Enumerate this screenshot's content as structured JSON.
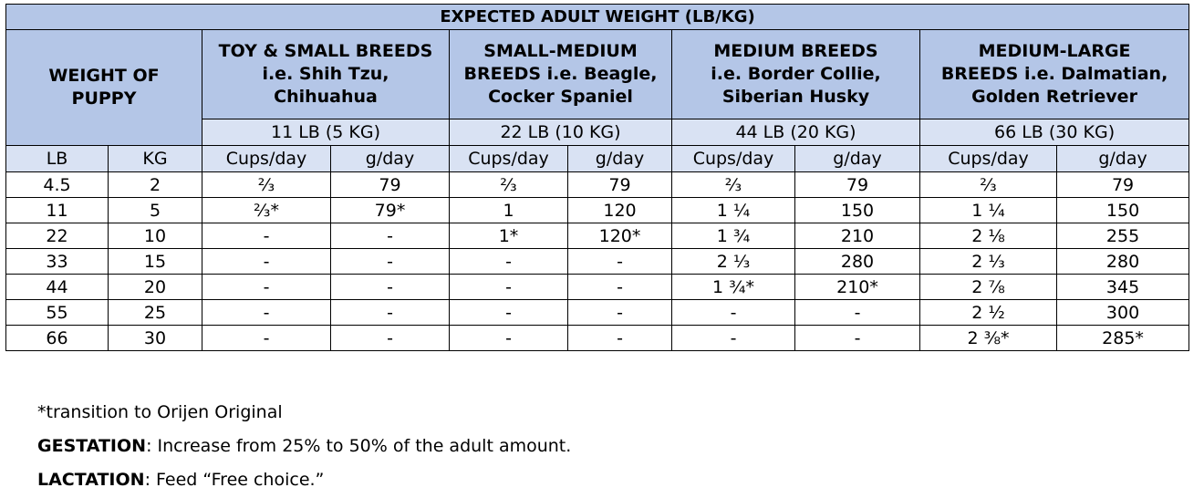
{
  "table": {
    "title": "EXPECTED ADULT WEIGHT (LB/KG)",
    "puppy_header": [
      "WEIGHT OF",
      "PUPPY"
    ],
    "breeds": [
      {
        "lines": [
          "TOY & SMALL BREEDS",
          "i.e. Shih Tzu,",
          "Chihuahua"
        ],
        "adult_weight": "11 LB (5 KG)"
      },
      {
        "lines": [
          "SMALL-MEDIUM",
          "BREEDS i.e. Beagle,",
          "Cocker Spaniel"
        ],
        "adult_weight": "22 LB (10 KG)"
      },
      {
        "lines": [
          "MEDIUM BREEDS",
          "i.e. Border Collie,",
          "Siberian Husky"
        ],
        "adult_weight": "44 LB (20 KG)"
      },
      {
        "lines": [
          "MEDIUM-LARGE",
          "BREEDS i.e. Dalmatian,",
          "Golden Retriever"
        ],
        "adult_weight": "66 LB (30 KG)"
      }
    ],
    "unit_headers": [
      "LB",
      "KG",
      "Cups/day",
      "g/day",
      "Cups/day",
      "g/day",
      "Cups/day",
      "g/day",
      "Cups/day",
      "g/day"
    ],
    "rows": [
      [
        "4.5",
        "2",
        "⅔",
        "79",
        "⅔",
        "79",
        "⅔",
        "79",
        "⅔",
        "79"
      ],
      [
        "11",
        "5",
        "⅔*",
        "79*",
        "1",
        "120",
        "1 ¼",
        "150",
        "1 ¼",
        "150"
      ],
      [
        "22",
        "10",
        "-",
        "-",
        "1*",
        "120*",
        "1 ¾",
        "210",
        "2 ⅛",
        "255"
      ],
      [
        "33",
        "15",
        "-",
        "-",
        "-",
        "-",
        "2 ⅓",
        "280",
        "2 ⅓",
        "280"
      ],
      [
        "44",
        "20",
        "-",
        "-",
        "-",
        "-",
        "1 ¾*",
        "210*",
        "2 ⅞",
        "345"
      ],
      [
        "55",
        "25",
        "-",
        "-",
        "-",
        "-",
        "-",
        "-",
        "2 ½",
        "300"
      ],
      [
        "66",
        "30",
        "-",
        "-",
        "-",
        "-",
        "-",
        "-",
        "2 ⅜*",
        "285*"
      ]
    ]
  },
  "notes": {
    "footnote": "*transition to Orijen Original",
    "gestation_label": "GESTATION",
    "gestation_text": ": Increase from 25% to 50% of the adult amount.",
    "lactation_label": "LACTATION",
    "lactation_text": ": Feed “Free choice.”"
  }
}
